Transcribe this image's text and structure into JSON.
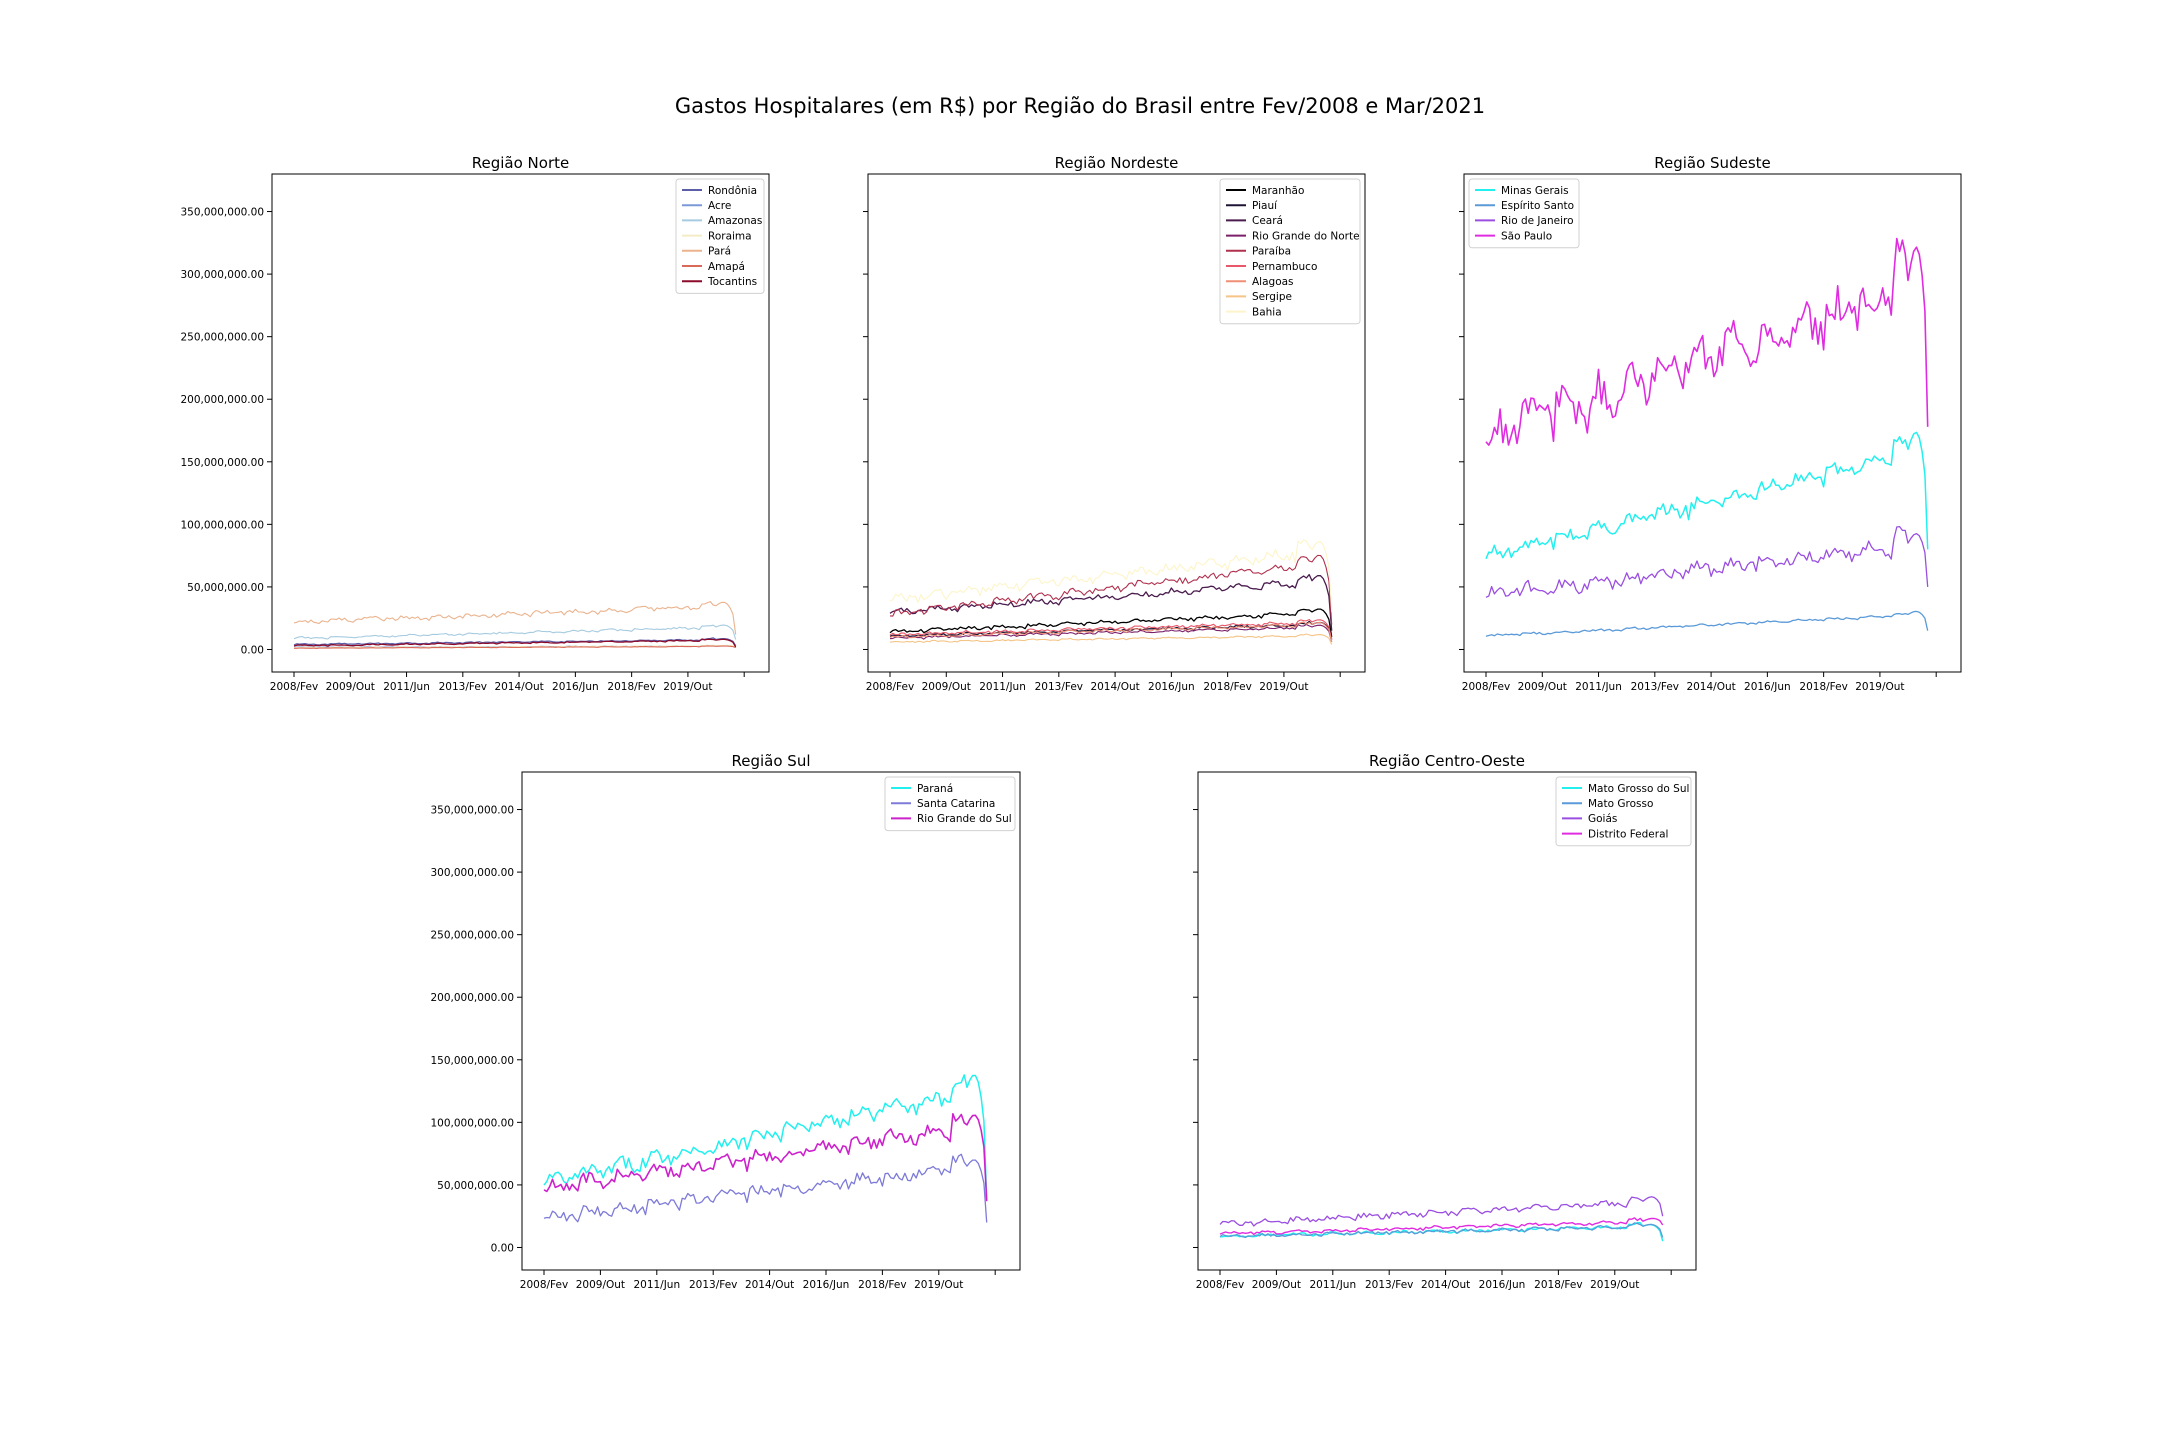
{
  "figure_title": "Gastos Hospitalares (em R$) por Região do Brasil entre Fev/2008 e Mar/2021",
  "chart_data": [
    {
      "type": "line",
      "title": "Região Norte",
      "x_tick_labels": [
        "2008/Fev",
        "2009/Out",
        "2011/Jun",
        "2013/Fev",
        "2014/Out",
        "2016/Jun",
        "2018/Fev",
        "2019/Out"
      ],
      "y_tick_labels": [
        "0.00",
        "50,000,000.00",
        "100,000,000.00",
        "150,000,000.00",
        "200,000,000.00",
        "250,000,000.00",
        "300,000,000.00",
        "350,000,000.00"
      ],
      "ylim": [
        -18000000,
        380000000
      ],
      "legend_position": "upper right",
      "series": [
        {
          "name": "Rondônia",
          "color": "#5c5fa8",
          "start": 4000000,
          "end": 8000000,
          "noise": 400000,
          "tail": 3000000,
          "lw": 1.3
        },
        {
          "name": "Acre",
          "color": "#7a98d8",
          "start": 1800000,
          "end": 2800000,
          "noise": 150000,
          "tail": 2000000,
          "lw": 1.1
        },
        {
          "name": "Amazonas",
          "color": "#a6cbe0",
          "start": 9000000,
          "end": 18000000,
          "noise": 700000,
          "tail": 8000000,
          "lw": 1.1
        },
        {
          "name": "Roraima",
          "color": "#f3ecc4",
          "start": 1500000,
          "end": 3000000,
          "noise": 200000,
          "tail": 2000000,
          "lw": 1.1
        },
        {
          "name": "Pará",
          "color": "#eab38e",
          "start": 22000000,
          "end": 35000000,
          "noise": 1500000,
          "tail": 12000000,
          "lw": 1.1
        },
        {
          "name": "Amapá",
          "color": "#d96a5a",
          "start": 1000000,
          "end": 2500000,
          "noise": 150000,
          "tail": 1500000,
          "lw": 1.1
        },
        {
          "name": "Tocantins",
          "color": "#8b0a2a",
          "start": 3000000,
          "end": 7500000,
          "noise": 400000,
          "tail": 2000000,
          "lw": 1.3
        }
      ]
    },
    {
      "type": "line",
      "title": "Região Nordeste",
      "x_tick_labels": [
        "2008/Fev",
        "2009/Out",
        "2011/Jun",
        "2013/Fev",
        "2014/Out",
        "2016/Jun",
        "2018/Fev",
        "2019/Out"
      ],
      "y_tick_labels": [],
      "ylim": [
        -18000000,
        380000000
      ],
      "legend_position": "upper right",
      "series": [
        {
          "name": "Maranhão",
          "color": "#000000",
          "start": 14000000,
          "end": 30000000,
          "noise": 1200000,
          "tail": 10000000,
          "lw": 1.3
        },
        {
          "name": "Piauí",
          "color": "#1e1535",
          "start": 11000000,
          "end": 20000000,
          "noise": 800000,
          "tail": 8000000,
          "lw": 1.3
        },
        {
          "name": "Ceará",
          "color": "#4a1c4e",
          "start": 30000000,
          "end": 55000000,
          "noise": 2000000,
          "tail": 15000000,
          "lw": 1.3
        },
        {
          "name": "Rio Grande do Norte",
          "color": "#7a1f6a",
          "start": 9000000,
          "end": 18000000,
          "noise": 800000,
          "tail": 6000000,
          "lw": 1.1
        },
        {
          "name": "Paraíba",
          "color": "#b0304e",
          "start": 28000000,
          "end": 70000000,
          "noise": 2500000,
          "tail": 20000000,
          "lw": 1.1
        },
        {
          "name": "Pernambuco",
          "color": "#e8576a",
          "start": 12000000,
          "end": 22000000,
          "noise": 900000,
          "tail": 8000000,
          "lw": 1.1
        },
        {
          "name": "Alagoas",
          "color": "#ef8f76",
          "start": 10000000,
          "end": 20000000,
          "noise": 900000,
          "tail": 6000000,
          "lw": 1.1
        },
        {
          "name": "Sergipe",
          "color": "#f5c487",
          "start": 6000000,
          "end": 11000000,
          "noise": 500000,
          "tail": 4000000,
          "lw": 1.1
        },
        {
          "name": "Bahia",
          "color": "#fdf5c9",
          "start": 40000000,
          "end": 80000000,
          "noise": 3500000,
          "tail": 30000000,
          "lw": 1.1
        }
      ]
    },
    {
      "type": "line",
      "title": "Região Sudeste",
      "x_tick_labels": [
        "2008/Fev",
        "2009/Out",
        "2011/Jun",
        "2013/Fev",
        "2014/Out",
        "2016/Jun",
        "2018/Fev",
        "2019/Out"
      ],
      "y_tick_labels": [],
      "ylim": [
        -18000000,
        380000000
      ],
      "legend_position": "upper left",
      "series": [
        {
          "name": "Minas Gerais",
          "color": "#22f0ee",
          "start": 75000000,
          "end": 160000000,
          "noise": 5000000,
          "tail": 80000000,
          "lw": 1.5
        },
        {
          "name": "Espírito Santo",
          "color": "#5b9ad8",
          "start": 11000000,
          "end": 28000000,
          "noise": 800000,
          "tail": 15000000,
          "lw": 1.3
        },
        {
          "name": "Rio de Janeiro",
          "color": "#9a4fe0",
          "start": 44000000,
          "end": 85000000,
          "noise": 5000000,
          "tail": 50000000,
          "lw": 1.3
        },
        {
          "name": "São Paulo",
          "color": "#e02ce0",
          "start": 172000000,
          "end": 295000000,
          "noise": 14000000,
          "tail": 178000000,
          "lw": 1.6
        }
      ]
    },
    {
      "type": "line",
      "title": "Região Sul",
      "x_tick_labels": [
        "2008/Fev",
        "2009/Out",
        "2011/Jun",
        "2013/Fev",
        "2014/Out",
        "2016/Jun",
        "2018/Fev",
        "2019/Out"
      ],
      "y_tick_labels": [
        "0.00",
        "50,000,000.00",
        "100,000,000.00",
        "150,000,000.00",
        "200,000,000.00",
        "250,000,000.00",
        "300,000,000.00",
        "350,000,000.00"
      ],
      "ylim": [
        -18000000,
        380000000
      ],
      "legend_position": "upper right",
      "series": [
        {
          "name": "Paraná",
          "color": "#22f0ee",
          "start": 52000000,
          "end": 128000000,
          "noise": 5000000,
          "tail": 38000000,
          "lw": 1.5
        },
        {
          "name": "Santa Catarina",
          "color": "#7d7ad8",
          "start": 25000000,
          "end": 65000000,
          "noise": 4000000,
          "tail": 20000000,
          "lw": 1.3
        },
        {
          "name": "Rio Grande do Sul",
          "color": "#cc22cc",
          "start": 48000000,
          "end": 98000000,
          "noise": 5000000,
          "tail": 37000000,
          "lw": 1.6
        }
      ]
    },
    {
      "type": "line",
      "title": "Região Centro-Oeste",
      "x_tick_labels": [
        "2008/Fev",
        "2009/Out",
        "2011/Jun",
        "2013/Fev",
        "2014/Out",
        "2016/Jun",
        "2018/Fev",
        "2019/Out"
      ],
      "y_tick_labels": [],
      "ylim": [
        -18000000,
        380000000
      ],
      "legend_position": "upper right",
      "series": [
        {
          "name": "Mato Grosso do Sul",
          "color": "#22f0ee",
          "start": 9000000,
          "end": 17000000,
          "noise": 1000000,
          "tail": 5000000,
          "lw": 1.5
        },
        {
          "name": "Mato Grosso",
          "color": "#5b9ad8",
          "start": 9000000,
          "end": 17000000,
          "noise": 1000000,
          "tail": 8000000,
          "lw": 1.3
        },
        {
          "name": "Goiás",
          "color": "#9a4fe0",
          "start": 19000000,
          "end": 37000000,
          "noise": 1800000,
          "tail": 25000000,
          "lw": 1.3
        },
        {
          "name": "Distrito Federal",
          "color": "#e02ce0",
          "start": 11000000,
          "end": 21000000,
          "noise": 1000000,
          "tail": 18000000,
          "lw": 1.4
        }
      ]
    }
  ]
}
